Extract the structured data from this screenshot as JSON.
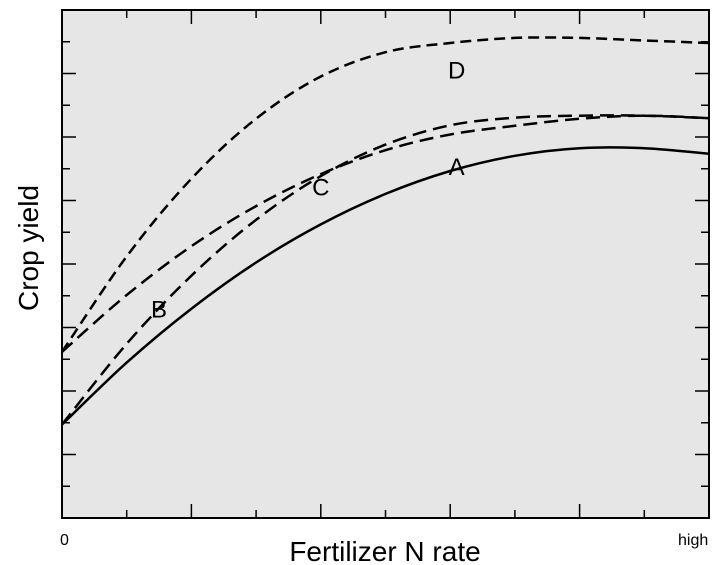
{
  "chart_data": {
    "type": "line",
    "title": "",
    "xlabel": "Fertilizer N rate",
    "ylabel": "Crop yield",
    "xlim": [
      0,
      1
    ],
    "ylim": [
      0,
      1
    ],
    "x_tick_labels": {
      "start": "0",
      "end": "high"
    },
    "y_tick_labels_shown": false,
    "grid": false,
    "legend": "none (curves labeled directly)",
    "plot_background": "#e6e6e6",
    "series": [
      {
        "label": "A",
        "style": "solid",
        "x": [
          0,
          0.1,
          0.2,
          0.3,
          0.4,
          0.5,
          0.6,
          0.7,
          0.8,
          0.9,
          1.0
        ],
        "y": [
          0.184,
          0.306,
          0.412,
          0.503,
          0.578,
          0.638,
          0.683,
          0.713,
          0.728,
          0.728,
          0.717
        ]
      },
      {
        "label": "B",
        "style": "long-dash",
        "x": [
          0,
          0.1,
          0.2,
          0.3,
          0.4,
          0.5,
          0.6,
          0.7,
          0.8,
          0.9,
          1.0
        ],
        "y": [
          0.184,
          0.343,
          0.477,
          0.587,
          0.673,
          0.735,
          0.773,
          0.788,
          0.792,
          0.792,
          0.787
        ]
      },
      {
        "label": "C",
        "style": "long-dash",
        "x": [
          0,
          0.1,
          0.2,
          0.3,
          0.4,
          0.5,
          0.6,
          0.7,
          0.8,
          0.9,
          1.0
        ],
        "y": [
          0.327,
          0.439,
          0.535,
          0.614,
          0.677,
          0.724,
          0.755,
          0.772,
          0.786,
          0.792,
          0.787
        ]
      },
      {
        "label": "D",
        "style": "short-dash",
        "x": [
          0,
          0.1,
          0.2,
          0.3,
          0.4,
          0.5,
          0.6,
          0.7,
          0.8,
          0.9,
          1.0
        ],
        "y": [
          0.327,
          0.515,
          0.668,
          0.786,
          0.869,
          0.917,
          0.935,
          0.945,
          0.945,
          0.94,
          0.935
        ]
      }
    ]
  }
}
